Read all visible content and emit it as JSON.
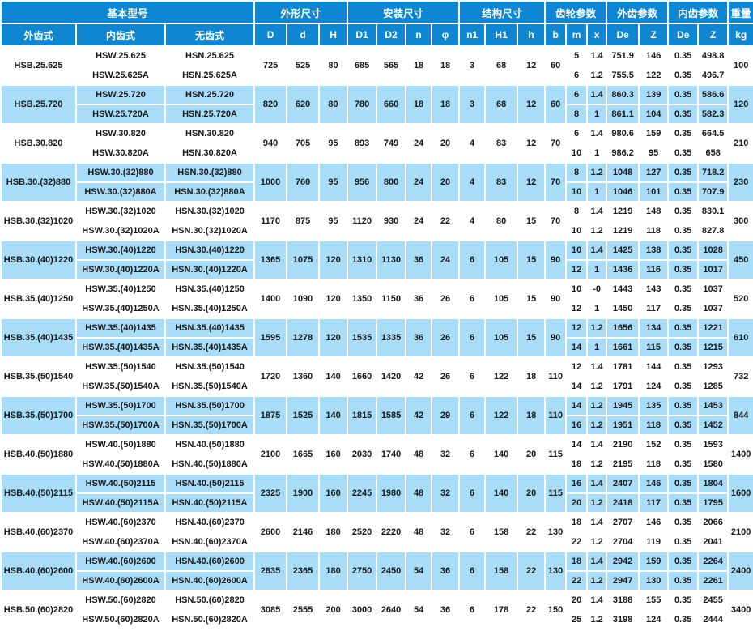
{
  "colors": {
    "header_bg": "#0e86d2",
    "header_text": "#ffffff",
    "row_alt_bg": "#a9ddf7",
    "row_bg": "#ffffff",
    "cell_text": "#17181a",
    "grid_line": "#ffffff"
  },
  "header": {
    "groups": [
      {
        "label": "基本型号",
        "span": 3
      },
      {
        "label": "外形尺寸",
        "span": 3
      },
      {
        "label": "安装尺寸",
        "span": 4
      },
      {
        "label": "结构尺寸",
        "span": 3
      },
      {
        "label": "齿轮参数",
        "span": 3
      },
      {
        "label": "外齿参数",
        "span": 2
      },
      {
        "label": "内齿参数",
        "span": 2
      },
      {
        "label": "重量",
        "span": 1
      }
    ],
    "columns": [
      "外齿式",
      "内齿式",
      "无齿式",
      "D",
      "d",
      "H",
      "D1",
      "D2",
      "n",
      "φ",
      "n1",
      "H1",
      "h",
      "b",
      "m",
      "x",
      "De",
      "Z",
      "De",
      "Z",
      "kg"
    ]
  },
  "rows": [
    {
      "hsb": "HSB.25.625",
      "hsw": [
        "HSW.25.625",
        "HSW.25.625A"
      ],
      "hsn": [
        "HSN.25.625",
        "HSN.25.625A"
      ],
      "D": "725",
      "d": "525",
      "H": "80",
      "D1": "685",
      "D2": "565",
      "n": "18",
      "phi": "18",
      "n1": "3",
      "H1": "68",
      "h": "12",
      "b": "60",
      "sub": [
        {
          "m": "5",
          "x": "1.4",
          "De_ext": "751.9",
          "Z_ext": "146",
          "De_int": "0.35",
          "Z_int": "498.8"
        },
        {
          "m": "6",
          "x": "1.2",
          "De_ext": "755.5",
          "Z_ext": "122",
          "De_int": "0.35",
          "Z_int": "496.7"
        }
      ],
      "kg": "100"
    },
    {
      "hsb": "HSB.25.720",
      "hsw": [
        "HSW.25.720",
        "HSW.25.720A"
      ],
      "hsn": [
        "HSN.25.720",
        "HSN.25.720A"
      ],
      "D": "820",
      "d": "620",
      "H": "80",
      "D1": "780",
      "D2": "660",
      "n": "18",
      "phi": "18",
      "n1": "3",
      "H1": "68",
      "h": "12",
      "b": "60",
      "sub": [
        {
          "m": "6",
          "x": "1.4",
          "De_ext": "860.3",
          "Z_ext": "139",
          "De_int": "0.35",
          "Z_int": "586.6"
        },
        {
          "m": "8",
          "x": "1",
          "De_ext": "861.1",
          "Z_ext": "104",
          "De_int": "0.35",
          "Z_int": "582.3"
        }
      ],
      "kg": "120"
    },
    {
      "hsb": "HSB.30.820",
      "hsw": [
        "HSW.30.820",
        "HSW.30.820A"
      ],
      "hsn": [
        "HSN.30.820",
        "HSN.30.820A"
      ],
      "D": "940",
      "d": "705",
      "H": "95",
      "D1": "893",
      "D2": "749",
      "n": "24",
      "phi": "20",
      "n1": "4",
      "H1": "83",
      "h": "12",
      "b": "70",
      "sub": [
        {
          "m": "6",
          "x": "1.4",
          "De_ext": "980.6",
          "Z_ext": "159",
          "De_int": "0.35",
          "Z_int": "664.5"
        },
        {
          "m": "10",
          "x": "1",
          "De_ext": "986.2",
          "Z_ext": "95",
          "De_int": "0.35",
          "Z_int": "658"
        }
      ],
      "kg": "210"
    },
    {
      "hsb": "HSB.30.(32)880",
      "hsw": [
        "HSW.30.(32)880",
        "HSW.30.(32)880A"
      ],
      "hsn": [
        "HSN.30.(32)880",
        "HSN.30.(32)880A"
      ],
      "D": "1000",
      "d": "760",
      "H": "95",
      "D1": "956",
      "D2": "800",
      "n": "24",
      "phi": "20",
      "n1": "4",
      "H1": "83",
      "h": "12",
      "b": "70",
      "sub": [
        {
          "m": "8",
          "x": "1.2",
          "De_ext": "1048",
          "Z_ext": "127",
          "De_int": "0.35",
          "Z_int": "718.2"
        },
        {
          "m": "10",
          "x": "1",
          "De_ext": "1046",
          "Z_ext": "101",
          "De_int": "0.35",
          "Z_int": "707.9"
        }
      ],
      "kg": "230"
    },
    {
      "hsb": "HSB.30.(32)1020",
      "hsw": [
        "HSW.30.(32)1020",
        "HSW.30.(32)1020A"
      ],
      "hsn": [
        "HSN.30.(32)1020",
        "HSN.30.(32)1020A"
      ],
      "D": "1170",
      "d": "875",
      "H": "95",
      "D1": "1120",
      "D2": "930",
      "n": "24",
      "phi": "22",
      "n1": "4",
      "H1": "80",
      "h": "15",
      "b": "70",
      "sub": [
        {
          "m": "8",
          "x": "1.4",
          "De_ext": "1219",
          "Z_ext": "148",
          "De_int": "0.35",
          "Z_int": "830.1"
        },
        {
          "m": "10",
          "x": "1.2",
          "De_ext": "1219",
          "Z_ext": "118",
          "De_int": "0.35",
          "Z_int": "827.8"
        }
      ],
      "kg": "300"
    },
    {
      "hsb": "HSB.30.(40)1220",
      "hsw": [
        "HSW.30.(40)1220",
        "HSW.30.(40)1220A"
      ],
      "hsn": [
        "HSN.30.(40)1220",
        "HSN.30.(40)1220A"
      ],
      "D": "1365",
      "d": "1075",
      "H": "120",
      "D1": "1310",
      "D2": "1130",
      "n": "36",
      "phi": "24",
      "n1": "6",
      "H1": "105",
      "h": "15",
      "b": "90",
      "sub": [
        {
          "m": "10",
          "x": "1.4",
          "De_ext": "1425",
          "Z_ext": "138",
          "De_int": "0.35",
          "Z_int": "1028"
        },
        {
          "m": "12",
          "x": "1",
          "De_ext": "1436",
          "Z_ext": "116",
          "De_int": "0.35",
          "Z_int": "1017"
        }
      ],
      "kg": "450"
    },
    {
      "hsb": "HSB.35.(40)1250",
      "hsw": [
        "HSW.35.(40)1250",
        "HSW.35.(40)1250A"
      ],
      "hsn": [
        "HSN.35.(40)1250",
        "HSN.35.(40)1250A"
      ],
      "D": "1400",
      "d": "1090",
      "H": "120",
      "D1": "1350",
      "D2": "1150",
      "n": "36",
      "phi": "26",
      "n1": "6",
      "H1": "105",
      "h": "15",
      "b": "90",
      "sub": [
        {
          "m": "10",
          "x": "-0",
          "De_ext": "1443",
          "Z_ext": "143",
          "De_int": "0.35",
          "Z_int": "1037"
        },
        {
          "m": "12",
          "x": "1",
          "De_ext": "1450",
          "Z_ext": "117",
          "De_int": "0.35",
          "Z_int": "1037"
        }
      ],
      "kg": "520"
    },
    {
      "hsb": "HSB.35.(40)1435",
      "hsw": [
        "HSW.35.(40)1435",
        "HSW.35.(40)1435A"
      ],
      "hsn": [
        "HSN.35.(40)1435",
        "HSN.35.(40)1435A"
      ],
      "D": "1595",
      "d": "1278",
      "H": "120",
      "D1": "1535",
      "D2": "1335",
      "n": "36",
      "phi": "26",
      "n1": "6",
      "H1": "105",
      "h": "15",
      "b": "90",
      "sub": [
        {
          "m": "12",
          "x": "1.2",
          "De_ext": "1656",
          "Z_ext": "134",
          "De_int": "0.35",
          "Z_int": "1221"
        },
        {
          "m": "14",
          "x": "1",
          "De_ext": "1661",
          "Z_ext": "115",
          "De_int": "0.35",
          "Z_int": "1215"
        }
      ],
      "kg": "610"
    },
    {
      "hsb": "HSB.35.(50)1540",
      "hsw": [
        "HSW.35.(50)1540",
        "HSW.35.(50)1540A"
      ],
      "hsn": [
        "HSN.35.(50)1540",
        "HSN.35.(50)1540A"
      ],
      "D": "1720",
      "d": "1360",
      "H": "140",
      "D1": "1660",
      "D2": "1420",
      "n": "42",
      "phi": "26",
      "n1": "6",
      "H1": "122",
      "h": "18",
      "b": "110",
      "sub": [
        {
          "m": "12",
          "x": "1.4",
          "De_ext": "1781",
          "Z_ext": "144",
          "De_int": "0.35",
          "Z_int": "1293"
        },
        {
          "m": "14",
          "x": "1.2",
          "De_ext": "1791",
          "Z_ext": "124",
          "De_int": "0.35",
          "Z_int": "1285"
        }
      ],
      "kg": "732"
    },
    {
      "hsb": "HSB.35.(50)1700",
      "hsw": [
        "HSW.35.(50)1700",
        "HSW.35.(50)1700A"
      ],
      "hsn": [
        "HSN.35.(50)1700",
        "HSN.35.(50)1700A"
      ],
      "D": "1875",
      "d": "1525",
      "H": "140",
      "D1": "1815",
      "D2": "1585",
      "n": "42",
      "phi": "29",
      "n1": "6",
      "H1": "122",
      "h": "18",
      "b": "110",
      "sub": [
        {
          "m": "14",
          "x": "1.2",
          "De_ext": "1945",
          "Z_ext": "135",
          "De_int": "0.35",
          "Z_int": "1453"
        },
        {
          "m": "16",
          "x": "1.2",
          "De_ext": "1951",
          "Z_ext": "118",
          "De_int": "0.35",
          "Z_int": "1452"
        }
      ],
      "kg": "844"
    },
    {
      "hsb": "HSB.40.(50)1880",
      "hsw": [
        "HSW.40.(50)1880",
        "HSW.40.(50)1880A"
      ],
      "hsn": [
        "HSN.40.(50)1880",
        "HSN.40.(50)1880A"
      ],
      "D": "2100",
      "d": "1665",
      "H": "160",
      "D1": "2030",
      "D2": "1740",
      "n": "48",
      "phi": "32",
      "n1": "6",
      "H1": "140",
      "h": "20",
      "b": "115",
      "sub": [
        {
          "m": "14",
          "x": "1.4",
          "De_ext": "2190",
          "Z_ext": "152",
          "De_int": "0.35",
          "Z_int": "1593"
        },
        {
          "m": "18",
          "x": "1.2",
          "De_ext": "2195",
          "Z_ext": "118",
          "De_int": "0.35",
          "Z_int": "1580"
        }
      ],
      "kg": "1400"
    },
    {
      "hsb": "HSB.40.(50)2115",
      "hsw": [
        "HSW.40.(50)2115",
        "HSW.40.(50)2115A"
      ],
      "hsn": [
        "HSN.40.(50)2115",
        "HSN.40.(50)2115A"
      ],
      "D": "2325",
      "d": "1900",
      "H": "160",
      "D1": "2245",
      "D2": "1980",
      "n": "48",
      "phi": "32",
      "n1": "6",
      "H1": "140",
      "h": "20",
      "b": "115",
      "sub": [
        {
          "m": "16",
          "x": "1.4",
          "De_ext": "2407",
          "Z_ext": "146",
          "De_int": "0.35",
          "Z_int": "1804"
        },
        {
          "m": "20",
          "x": "1.2",
          "De_ext": "2418",
          "Z_ext": "117",
          "De_int": "0.35",
          "Z_int": "1795"
        }
      ],
      "kg": "1600"
    },
    {
      "hsb": "HSB.40.(60)2370",
      "hsw": [
        "HSW.40.(60)2370",
        "HSW.40.(60)2370A"
      ],
      "hsn": [
        "HSN.40.(60)2370",
        "HSN.40.(60)2370A"
      ],
      "D": "2600",
      "d": "2146",
      "H": "180",
      "D1": "2520",
      "D2": "2220",
      "n": "48",
      "phi": "32",
      "n1": "6",
      "H1": "158",
      "h": "22",
      "b": "130",
      "sub": [
        {
          "m": "18",
          "x": "1.4",
          "De_ext": "2707",
          "Z_ext": "146",
          "De_int": "0.35",
          "Z_int": "2066"
        },
        {
          "m": "22",
          "x": "1.2",
          "De_ext": "2704",
          "Z_ext": "119",
          "De_int": "0.35",
          "Z_int": "2041"
        }
      ],
      "kg": "2100"
    },
    {
      "hsb": "HSB.40.(60)2600",
      "hsw": [
        "HSW.40.(60)2600",
        "HSW.40.(60)2600A"
      ],
      "hsn": [
        "HSN.40.(60)2600",
        "HSN.40.(60)2600A"
      ],
      "D": "2835",
      "d": "2365",
      "H": "180",
      "D1": "2750",
      "D2": "2450",
      "n": "54",
      "phi": "36",
      "n1": "6",
      "H1": "158",
      "h": "22",
      "b": "130",
      "sub": [
        {
          "m": "18",
          "x": "1.4",
          "De_ext": "2942",
          "Z_ext": "159",
          "De_int": "0.35",
          "Z_int": "2264"
        },
        {
          "m": "22",
          "x": "1.2",
          "De_ext": "2947",
          "Z_ext": "130",
          "De_int": "0.35",
          "Z_int": "2261"
        }
      ],
      "kg": "2400"
    },
    {
      "hsb": "HSB.50.(60)2820",
      "hsw": [
        "HSW.50.(60)2820",
        "HSW.50.(60)2820A"
      ],
      "hsn": [
        "HSN.50.(60)2820",
        "HSN.50.(60)2820A"
      ],
      "D": "3085",
      "d": "2555",
      "H": "200",
      "D1": "3000",
      "D2": "2640",
      "n": "54",
      "phi": "36",
      "n1": "6",
      "H1": "178",
      "h": "22",
      "b": "150",
      "sub": [
        {
          "m": "20",
          "x": "1.4",
          "De_ext": "3188",
          "Z_ext": "155",
          "De_int": "0.35",
          "Z_int": "2455"
        },
        {
          "m": "25",
          "x": "1.2",
          "De_ext": "3198",
          "Z_ext": "124",
          "De_int": "0.35",
          "Z_int": "2444"
        }
      ],
      "kg": "3400"
    }
  ]
}
